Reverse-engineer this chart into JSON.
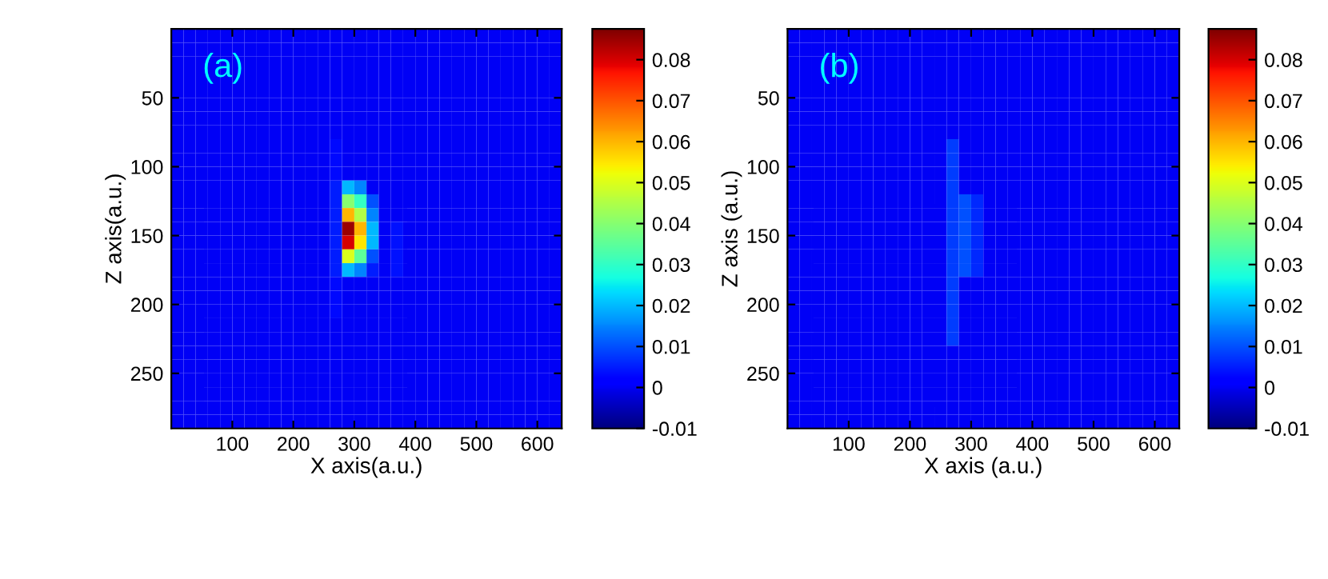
{
  "chart_data": [
    {
      "type": "heatmap",
      "xlabel": "X axis(a.u.)",
      "ylabel": "Z axis(a.u.)",
      "annotations": [
        "(a)"
      ],
      "xlim": [
        0,
        640
      ],
      "ylim": [
        290,
        0
      ],
      "xticks": [
        100,
        200,
        300,
        400,
        500,
        600
      ],
      "yticks": [
        50,
        100,
        150,
        200,
        250
      ],
      "clim": [
        -0.01,
        0.0875
      ],
      "cticks": [
        -0.01,
        0,
        0.01,
        0.02,
        0.03,
        0.04,
        0.05,
        0.06,
        0.07,
        0.08
      ],
      "cells": [
        [
          0,
          0,
          0,
          0,
          0,
          0,
          0,
          0,
          0,
          0,
          0,
          0,
          0,
          0,
          0,
          0,
          0,
          0,
          0,
          0,
          0,
          0,
          0,
          0,
          0,
          0,
          0,
          0,
          0,
          0,
          0,
          0
        ],
        [
          0,
          0,
          0,
          0,
          0,
          0,
          0,
          0,
          0,
          0,
          0,
          0,
          0,
          0,
          0,
          0,
          0,
          0,
          0,
          0,
          0,
          0,
          0,
          0,
          0,
          0,
          0,
          0,
          0,
          0,
          0,
          0
        ],
        [
          0,
          0,
          0,
          0,
          0,
          0,
          0,
          0,
          0,
          0,
          0,
          0,
          0,
          0,
          0,
          0,
          0,
          0,
          0,
          0,
          0,
          0,
          0,
          0,
          0,
          0,
          0,
          0,
          0,
          0,
          0,
          0
        ],
        [
          0,
          0,
          0,
          0,
          0,
          0,
          0,
          0,
          0,
          0,
          0,
          0,
          0,
          0,
          0,
          0,
          0,
          0,
          0,
          0,
          0,
          0,
          0,
          0,
          0,
          0,
          0,
          0,
          0,
          0,
          0,
          0
        ],
        [
          0,
          0,
          0,
          0,
          0,
          0,
          0,
          0,
          0,
          0,
          0,
          0,
          0,
          0,
          0,
          0,
          0,
          0,
          0,
          0,
          0,
          0,
          0,
          0,
          0,
          0,
          0,
          0,
          0,
          0,
          0,
          0
        ],
        [
          0,
          0,
          0,
          0,
          0,
          0,
          0,
          0,
          0,
          0,
          0,
          0,
          0,
          0,
          0,
          0,
          0,
          0,
          0,
          0,
          0,
          0,
          0,
          0,
          0,
          0,
          0,
          0,
          0,
          0,
          0,
          0
        ],
        [
          0,
          0,
          0,
          0,
          0,
          0,
          0,
          0,
          0,
          0,
          0,
          0,
          0,
          0,
          0,
          0,
          0,
          0,
          0,
          0,
          0,
          0,
          0,
          0,
          0,
          0,
          0,
          0,
          0,
          0,
          0,
          0
        ],
        [
          0,
          0,
          0,
          0,
          0,
          0,
          0,
          0,
          0,
          0,
          0,
          0,
          0,
          0,
          0,
          0,
          0,
          0,
          0,
          0,
          0,
          0,
          0,
          0,
          0,
          0,
          0,
          0,
          0,
          0,
          0,
          0
        ],
        [
          0,
          0,
          0,
          0,
          0,
          0,
          0,
          0,
          0,
          0,
          0,
          0,
          0,
          0.003,
          0,
          0,
          0,
          0,
          0,
          0,
          0,
          0,
          0,
          0,
          0,
          0,
          0,
          0,
          0,
          0,
          0,
          0
        ],
        [
          0,
          0,
          0,
          0,
          0,
          0,
          0,
          0,
          0,
          0,
          0,
          0,
          0,
          0.003,
          0,
          0,
          0,
          0,
          0,
          0,
          0,
          0,
          0,
          0,
          0,
          0,
          0,
          0,
          0,
          0,
          0,
          0
        ],
        [
          0,
          0,
          0,
          0,
          0,
          0,
          0,
          0,
          0,
          0,
          0,
          0,
          0,
          0.003,
          0,
          0,
          0,
          0,
          0,
          0,
          0,
          0,
          0,
          0,
          0,
          0,
          0,
          0,
          0,
          0,
          0,
          0
        ],
        [
          0,
          0,
          0,
          0,
          0,
          0,
          0,
          0,
          0,
          0,
          0,
          0,
          0,
          0.005,
          0.02,
          0.015,
          0,
          0,
          0,
          0,
          0,
          0,
          0,
          0,
          0,
          0,
          0,
          0,
          0,
          0,
          0,
          0
        ],
        [
          0,
          0,
          0,
          0,
          0,
          0,
          0,
          0,
          0,
          0,
          0,
          0,
          0,
          0.005,
          0.04,
          0.03,
          0.01,
          0,
          0,
          0,
          0,
          0,
          0,
          0,
          0,
          0,
          0,
          0,
          0,
          0,
          0,
          0
        ],
        [
          0,
          0,
          0,
          0,
          0,
          0,
          0,
          0,
          0,
          0,
          0,
          0,
          0,
          0.005,
          0.06,
          0.045,
          0.015,
          0,
          0,
          0,
          0,
          0,
          0,
          0,
          0,
          0,
          0,
          0,
          0,
          0,
          0,
          0
        ],
        [
          0,
          0,
          0,
          0,
          0,
          0,
          0,
          0,
          0,
          0,
          0,
          0,
          0,
          0.005,
          0.085,
          0.06,
          0.02,
          0,
          0.004,
          0,
          0,
          0,
          0,
          0,
          0,
          0,
          0,
          0,
          0,
          0,
          0,
          0
        ],
        [
          0,
          0,
          0,
          0,
          0,
          0,
          0,
          0,
          0,
          0,
          0,
          0,
          0,
          0.005,
          0.08,
          0.055,
          0.02,
          0,
          0.004,
          0,
          0,
          0,
          0,
          0,
          0,
          0,
          0,
          0,
          0,
          0,
          0,
          0
        ],
        [
          0,
          0,
          0,
          0,
          0,
          0,
          0,
          0,
          0,
          0,
          0,
          0,
          0,
          0.005,
          0.05,
          0.035,
          0.01,
          0,
          0.004,
          0,
          0,
          0,
          0,
          0,
          0,
          0,
          0,
          0,
          0,
          0,
          0,
          0
        ],
        [
          0,
          0,
          0,
          0,
          0,
          0,
          0,
          0,
          0,
          0,
          0,
          0,
          0,
          0.005,
          0.02,
          0.015,
          0.005,
          0,
          0.004,
          0,
          0,
          0,
          0,
          0,
          0,
          0,
          0,
          0,
          0,
          0,
          0,
          0
        ],
        [
          0,
          0,
          0,
          0,
          0,
          0,
          0,
          0,
          0,
          0,
          0,
          0,
          0,
          0.003,
          0,
          0,
          0,
          0,
          0,
          0,
          0,
          0,
          0,
          0,
          0,
          0,
          0,
          0,
          0,
          0,
          0,
          0
        ],
        [
          0,
          0,
          0,
          0,
          0,
          0,
          0,
          0,
          0,
          0,
          0,
          0,
          0,
          0.003,
          0,
          0,
          0,
          0,
          0,
          0,
          0,
          0,
          0,
          0,
          0,
          0,
          0,
          0,
          0,
          0,
          0,
          0
        ],
        [
          0,
          0,
          0,
          0,
          0,
          0,
          0,
          0,
          0,
          0,
          0,
          0,
          0,
          0.003,
          0,
          0,
          0,
          0,
          0,
          0,
          0,
          0,
          0,
          0,
          0,
          0,
          0,
          0,
          0,
          0,
          0,
          0
        ],
        [
          0,
          0,
          0,
          0,
          0,
          0,
          0,
          0,
          0,
          0,
          0,
          0,
          0,
          0,
          0,
          0,
          0,
          0,
          0,
          0,
          0,
          0,
          0,
          0,
          0,
          0,
          0,
          0,
          0,
          0,
          0,
          0
        ],
        [
          0,
          0,
          0,
          0,
          0,
          0,
          0,
          0,
          0,
          0,
          0,
          0,
          0,
          0,
          0,
          0,
          0,
          0,
          0,
          0,
          0,
          0,
          0,
          0,
          0,
          0,
          0,
          0,
          0,
          0,
          0,
          0
        ],
        [
          0,
          0,
          0,
          0,
          0,
          0,
          0,
          0,
          0,
          0,
          0,
          0,
          0,
          0,
          0,
          0,
          0,
          0,
          0,
          0,
          0,
          0,
          0,
          0,
          0,
          0,
          0,
          0,
          0,
          0,
          0,
          0
        ],
        [
          0,
          0,
          0,
          0,
          0,
          0,
          0,
          0,
          0,
          0,
          0,
          0,
          0,
          0,
          0,
          0,
          0,
          0,
          0,
          0,
          0,
          0,
          0,
          0,
          0,
          0,
          0,
          0,
          0,
          0,
          0,
          0
        ],
        [
          0,
          0,
          0,
          0,
          0,
          0,
          0,
          0,
          0,
          0,
          0,
          0,
          0,
          0,
          0,
          0,
          0,
          0,
          0,
          0,
          0,
          0,
          0,
          0,
          0,
          0,
          0,
          0,
          0,
          0,
          0,
          0
        ],
        [
          0,
          0,
          0,
          0,
          0,
          0,
          0,
          0,
          0,
          0,
          0,
          0,
          0,
          0,
          0,
          0,
          0,
          0,
          0,
          0,
          0,
          0,
          0,
          0,
          0,
          0,
          0,
          0,
          0,
          0,
          0,
          0
        ],
        [
          0,
          0,
          0,
          0,
          0,
          0,
          0,
          0,
          0,
          0,
          0,
          0,
          0,
          0,
          0,
          0,
          0,
          0,
          0,
          0,
          0,
          0,
          0,
          0,
          0,
          0,
          0,
          0,
          0,
          0,
          0,
          0
        ],
        [
          0,
          0,
          0,
          0,
          0,
          0,
          0,
          0,
          0,
          0,
          0,
          0,
          0,
          0,
          0,
          0,
          0,
          0,
          0,
          0,
          0,
          0,
          0,
          0,
          0,
          0,
          0,
          0,
          0,
          0,
          0,
          0
        ]
      ]
    },
    {
      "type": "heatmap",
      "xlabel": "X axis (a.u.)",
      "ylabel": "Z axis (a.u.)",
      "annotations": [
        "(b)"
      ],
      "xlim": [
        0,
        640
      ],
      "ylim": [
        290,
        0
      ],
      "xticks": [
        100,
        200,
        300,
        400,
        500,
        600
      ],
      "yticks": [
        50,
        100,
        150,
        200,
        250
      ],
      "clim": [
        -0.01,
        0.0875
      ],
      "cticks": [
        -0.01,
        0,
        0.01,
        0.02,
        0.03,
        0.04,
        0.05,
        0.06,
        0.07,
        0.08
      ],
      "cells": [
        [
          0,
          0,
          0,
          0,
          0,
          0,
          0,
          0,
          0,
          0,
          0,
          0,
          0,
          0,
          0,
          0,
          0,
          0,
          0,
          0,
          0,
          0,
          0,
          0,
          0,
          0,
          0,
          0,
          0,
          0,
          0,
          0
        ],
        [
          0,
          0,
          0,
          0,
          0,
          0,
          0,
          0,
          0,
          0,
          0,
          0,
          0,
          0,
          0,
          0,
          0,
          0,
          0,
          0,
          0,
          0,
          0,
          0,
          0,
          0,
          0,
          0,
          0,
          0,
          0,
          0
        ],
        [
          0,
          0,
          0,
          0,
          0,
          0,
          0,
          0,
          0,
          0,
          0,
          0,
          0,
          0,
          0,
          0,
          0,
          0,
          0,
          0,
          0,
          0,
          0,
          0,
          0,
          0,
          0,
          0,
          0,
          0,
          0,
          0
        ],
        [
          0,
          0,
          0,
          0,
          0,
          0,
          0,
          0,
          0,
          0,
          0,
          0,
          0,
          0,
          0,
          0,
          0,
          0,
          0,
          0,
          0,
          0,
          0,
          0,
          0,
          0,
          0,
          0,
          0,
          0,
          0,
          0
        ],
        [
          0,
          0,
          0,
          0,
          0,
          0,
          0,
          0,
          0,
          0,
          0,
          0,
          0,
          0,
          0,
          0,
          0,
          0,
          0,
          0,
          0,
          0,
          0,
          0,
          0,
          0,
          0,
          0,
          0,
          0,
          0,
          0
        ],
        [
          0,
          0,
          0,
          0,
          0,
          0,
          0,
          0,
          0,
          0,
          0,
          0,
          0,
          0,
          0,
          0,
          0,
          0,
          0,
          0,
          0,
          0,
          0,
          0,
          0,
          0,
          0,
          0,
          0,
          0,
          0,
          0
        ],
        [
          0,
          0,
          0,
          0,
          0,
          0,
          0,
          0,
          0,
          0,
          0,
          0,
          0,
          0,
          0,
          0,
          0,
          0,
          0,
          0,
          0,
          0,
          0,
          0,
          0,
          0,
          0,
          0,
          0,
          0,
          0,
          0
        ],
        [
          0,
          0,
          0,
          0,
          0,
          0,
          0,
          0,
          0,
          0,
          0,
          0,
          0,
          0,
          0,
          0,
          0,
          0,
          0,
          0,
          0,
          0,
          0,
          0,
          0,
          0,
          0,
          0,
          0,
          0,
          0,
          0
        ],
        [
          0,
          0,
          0,
          0,
          0,
          0,
          0,
          0,
          0,
          0,
          0,
          0,
          0,
          0.008,
          0,
          0,
          0,
          0,
          0,
          0,
          0,
          0,
          0,
          0,
          0,
          0,
          0,
          0,
          0,
          0,
          0,
          0
        ],
        [
          0,
          0,
          0,
          0,
          0,
          0,
          0,
          0,
          0,
          0,
          0,
          0,
          0,
          0.008,
          0,
          0,
          0,
          0,
          0,
          0,
          0,
          0,
          0,
          0,
          0,
          0,
          0,
          0,
          0,
          0,
          0,
          0
        ],
        [
          0,
          0,
          0,
          0,
          0,
          0,
          0,
          0,
          0,
          0,
          0,
          0,
          0,
          0.008,
          0,
          0,
          0,
          0,
          0,
          0,
          0,
          0,
          0,
          0,
          0,
          0,
          0,
          0,
          0,
          0,
          0,
          0
        ],
        [
          0,
          0,
          0,
          0,
          0,
          0,
          0,
          0,
          0,
          0,
          0,
          0,
          0,
          0.008,
          0,
          0,
          0,
          0,
          0,
          0,
          0,
          0,
          0,
          0,
          0,
          0,
          0,
          0,
          0,
          0,
          0,
          0
        ],
        [
          0,
          0,
          0,
          0,
          0,
          0,
          0,
          0,
          0,
          0,
          0,
          0,
          0,
          0.008,
          0.01,
          0.006,
          0,
          0,
          0,
          0,
          0,
          0,
          0,
          0,
          0,
          0,
          0,
          0,
          0,
          0,
          0,
          0
        ],
        [
          0,
          0,
          0,
          0,
          0,
          0,
          0,
          0,
          0,
          0,
          0,
          0,
          0,
          0.008,
          0.01,
          0.006,
          0,
          0,
          0,
          0,
          0,
          0,
          0,
          0,
          0,
          0,
          0,
          0,
          0,
          0,
          0,
          0
        ],
        [
          0,
          0,
          0,
          0,
          0,
          0,
          0,
          0,
          0,
          0,
          0,
          0,
          0,
          0.008,
          0.01,
          0.006,
          0,
          0,
          0,
          0,
          0,
          0,
          0,
          0,
          0,
          0,
          0,
          0,
          0,
          0,
          0,
          0
        ],
        [
          0,
          0,
          0,
          0,
          0,
          0,
          0,
          0,
          0,
          0,
          0,
          0,
          0,
          0.008,
          0.01,
          0.006,
          0,
          0,
          0,
          0,
          0,
          0,
          0,
          0,
          0,
          0,
          0,
          0,
          0,
          0,
          0,
          0
        ],
        [
          0,
          0,
          0,
          0,
          0,
          0,
          0,
          0,
          0,
          0,
          0,
          0,
          0,
          0.008,
          0.01,
          0.006,
          0,
          0,
          0,
          0,
          0,
          0,
          0,
          0,
          0,
          0,
          0,
          0,
          0,
          0,
          0,
          0
        ],
        [
          0,
          0,
          0,
          0,
          0,
          0,
          0,
          0,
          0,
          0,
          0,
          0,
          0,
          0.008,
          0.01,
          0.006,
          0,
          0,
          0,
          0,
          0,
          0,
          0,
          0,
          0,
          0,
          0,
          0,
          0,
          0,
          0,
          0
        ],
        [
          0,
          0,
          0,
          0,
          0,
          0,
          0,
          0,
          0,
          0,
          0,
          0,
          0,
          0.008,
          0,
          0,
          0,
          0,
          0,
          0,
          0,
          0,
          0,
          0,
          0,
          0,
          0,
          0,
          0,
          0,
          0,
          0
        ],
        [
          0,
          0,
          0,
          0,
          0,
          0,
          0,
          0,
          0,
          0,
          0,
          0,
          0,
          0.008,
          0,
          0,
          0,
          0,
          0,
          0,
          0,
          0,
          0,
          0,
          0,
          0,
          0,
          0,
          0,
          0,
          0,
          0
        ],
        [
          0,
          0,
          0,
          0,
          0,
          0,
          0,
          0,
          0,
          0,
          0,
          0,
          0,
          0.008,
          0,
          0,
          0,
          0,
          0,
          0,
          0,
          0,
          0,
          0,
          0,
          0,
          0,
          0,
          0,
          0,
          0,
          0
        ],
        [
          0,
          0,
          0,
          0,
          0,
          0,
          0,
          0,
          0,
          0,
          0,
          0,
          0,
          0.008,
          0,
          0,
          0,
          0,
          0,
          0,
          0,
          0,
          0,
          0,
          0,
          0,
          0,
          0,
          0,
          0,
          0,
          0
        ],
        [
          0,
          0,
          0,
          0,
          0,
          0,
          0,
          0,
          0,
          0,
          0,
          0,
          0,
          0.008,
          0,
          0,
          0,
          0,
          0,
          0,
          0,
          0,
          0,
          0,
          0,
          0,
          0,
          0,
          0,
          0,
          0,
          0
        ],
        [
          0,
          0,
          0,
          0,
          0,
          0,
          0,
          0,
          0,
          0,
          0,
          0,
          0,
          0,
          0,
          0,
          0,
          0,
          0,
          0,
          0,
          0,
          0,
          0,
          0,
          0,
          0,
          0,
          0,
          0,
          0,
          0
        ],
        [
          0,
          0,
          0,
          0,
          0,
          0,
          0,
          0,
          0,
          0,
          0,
          0,
          0,
          0,
          0,
          0,
          0,
          0,
          0,
          0,
          0,
          0,
          0,
          0,
          0,
          0,
          0,
          0,
          0,
          0,
          0,
          0
        ],
        [
          0,
          0,
          0,
          0,
          0,
          0,
          0,
          0,
          0,
          0,
          0,
          0,
          0,
          0,
          0,
          0,
          0,
          0,
          0,
          0,
          0,
          0,
          0,
          0,
          0,
          0,
          0,
          0,
          0,
          0,
          0,
          0
        ],
        [
          0,
          0,
          0,
          0,
          0,
          0,
          0,
          0,
          0,
          0,
          0,
          0,
          0,
          0,
          0,
          0,
          0,
          0,
          0,
          0,
          0,
          0,
          0,
          0,
          0,
          0,
          0,
          0,
          0,
          0,
          0,
          0
        ],
        [
          0,
          0,
          0,
          0,
          0,
          0,
          0,
          0,
          0,
          0,
          0,
          0,
          0,
          0,
          0,
          0,
          0,
          0,
          0,
          0,
          0,
          0,
          0,
          0,
          0,
          0,
          0,
          0,
          0,
          0,
          0,
          0
        ],
        [
          0,
          0,
          0,
          0,
          0,
          0,
          0,
          0,
          0,
          0,
          0,
          0,
          0,
          0,
          0,
          0,
          0,
          0,
          0,
          0,
          0,
          0,
          0,
          0,
          0,
          0,
          0,
          0,
          0,
          0,
          0,
          0
        ]
      ]
    }
  ]
}
